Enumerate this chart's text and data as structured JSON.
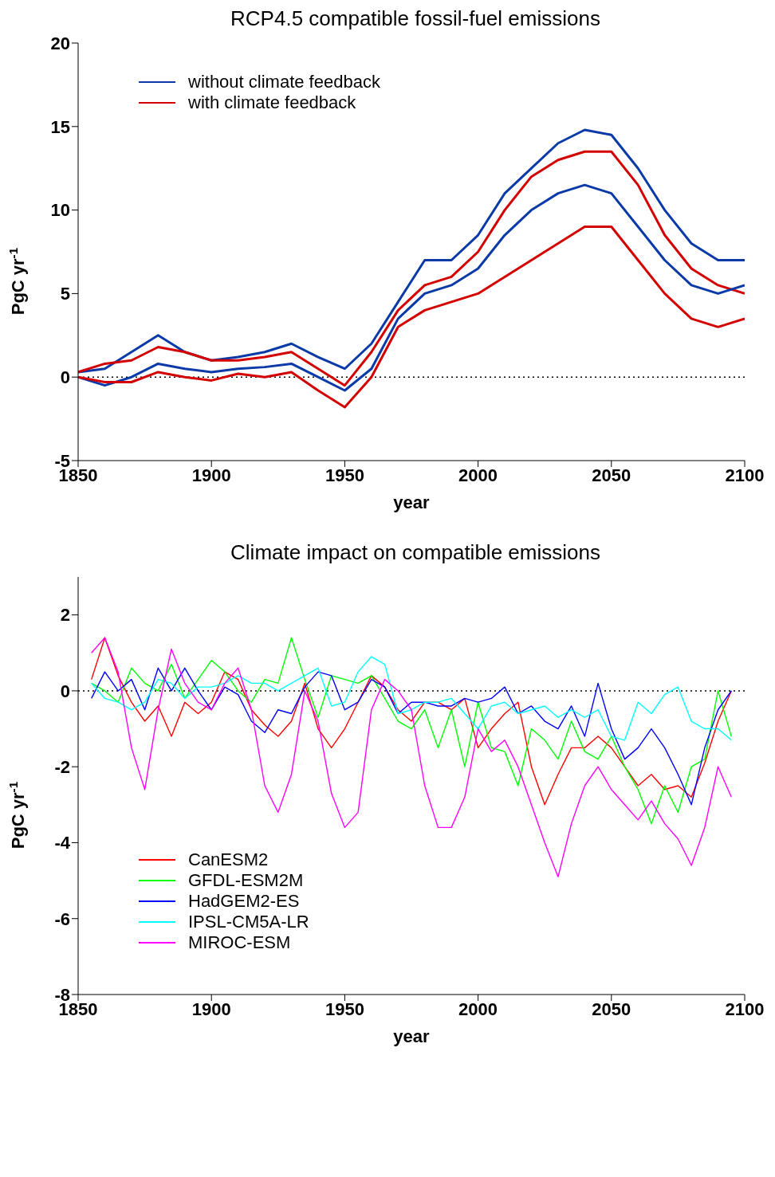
{
  "chart_data": [
    {
      "type": "line",
      "title": "RCP4.5 compatible fossil-fuel emissions",
      "xlabel": "year",
      "ylabel": "PgC yr$^{-1}$",
      "x": [
        1850,
        1860,
        1870,
        1880,
        1890,
        1900,
        1910,
        1920,
        1930,
        1940,
        1950,
        1960,
        1970,
        1980,
        1990,
        2000,
        2010,
        2020,
        2030,
        2040,
        2050,
        2060,
        2070,
        2080,
        2090,
        2100
      ],
      "series": [
        {
          "name": "without climate feedback",
          "color": "#0a3aa8",
          "values": [
            0.3,
            0.5,
            1.5,
            2.5,
            1.5,
            1.0,
            1.2,
            1.5,
            2.0,
            1.2,
            0.5,
            2.0,
            4.5,
            7.0,
            7.0,
            8.5,
            11.0,
            12.5,
            14.0,
            14.8,
            14.5,
            12.5,
            10.0,
            8.0,
            7.0,
            7.0
          ]
        },
        {
          "name": "with climate feedback",
          "color": "#d40000",
          "values": [
            0.3,
            0.8,
            1.0,
            1.8,
            1.5,
            1.0,
            1.0,
            1.2,
            1.5,
            0.5,
            -0.5,
            1.5,
            4.0,
            5.5,
            6.0,
            7.5,
            10.0,
            12.0,
            13.0,
            13.5,
            13.5,
            11.5,
            8.5,
            6.5,
            5.5,
            5.0
          ]
        },
        {
          "color": "#0a3aa8",
          "values": [
            0.0,
            -0.5,
            0.0,
            0.8,
            0.5,
            0.3,
            0.5,
            0.6,
            0.8,
            0.0,
            -0.8,
            0.5,
            3.5,
            5.0,
            5.5,
            6.5,
            8.5,
            10.0,
            11.0,
            11.5,
            11.0,
            9.0,
            7.0,
            5.5,
            5.0,
            5.5
          ]
        },
        {
          "color": "#d40000",
          "values": [
            0.0,
            -0.3,
            -0.3,
            0.3,
            0.0,
            -0.2,
            0.2,
            0.0,
            0.3,
            -0.8,
            -1.8,
            0.0,
            3.0,
            4.0,
            4.5,
            5.0,
            6.0,
            7.0,
            8.0,
            9.0,
            9.0,
            7.0,
            5.0,
            3.5,
            3.0,
            3.5
          ]
        }
      ],
      "xlim": [
        1850,
        2100
      ],
      "xticks": [
        1850,
        1900,
        1950,
        2000,
        2050,
        2100
      ],
      "ylim": [
        -5,
        20
      ],
      "yticks": [
        -5,
        0,
        5,
        10,
        15,
        20
      ],
      "ref_lines": [
        {
          "axis": "y",
          "value": 0,
          "color": "#000000",
          "line_style": "dotted"
        }
      ],
      "legend": "top left",
      "grid": false,
      "marker": "none",
      "line_style": "solid"
    },
    {
      "type": "line",
      "title": "Climate impact on compatible emissions",
      "xlabel": "year",
      "ylabel": "PgC yr$^{-1}$",
      "x": [
        1855,
        1860,
        1865,
        1870,
        1875,
        1880,
        1885,
        1890,
        1895,
        1900,
        1905,
        1910,
        1915,
        1920,
        1925,
        1930,
        1935,
        1940,
        1945,
        1950,
        1955,
        1960,
        1965,
        1970,
        1975,
        1980,
        1985,
        1990,
        1995,
        2000,
        2005,
        2010,
        2015,
        2020,
        2025,
        2030,
        2035,
        2040,
        2045,
        2050,
        2055,
        2060,
        2065,
        2070,
        2075,
        2080,
        2085,
        2090,
        2095
      ],
      "series": [
        {
          "name": "CanESM2",
          "color": "#ff0000",
          "values": [
            0.3,
            1.4,
            0.4,
            -0.3,
            -0.8,
            -0.4,
            -1.2,
            -0.3,
            -0.6,
            -0.3,
            0.5,
            0.3,
            -0.5,
            -0.9,
            -1.2,
            -0.8,
            0.2,
            -1.0,
            -1.5,
            -1.0,
            -0.3,
            0.4,
            0.1,
            -0.5,
            -0.8,
            -0.3,
            -0.3,
            -0.5,
            -0.2,
            -1.5,
            -1.0,
            -0.6,
            -0.3,
            -2.0,
            -3.0,
            -2.2,
            -1.5,
            -1.5,
            -1.2,
            -1.5,
            -2.0,
            -2.5,
            -2.2,
            -2.6,
            -2.5,
            -2.8,
            -1.9,
            -0.8,
            0.0
          ]
        },
        {
          "name": "GFDL-ESM2M",
          "color": "#00ff00",
          "values": [
            0.2,
            0.0,
            -0.3,
            0.6,
            0.2,
            0.0,
            0.7,
            -0.2,
            0.3,
            0.8,
            0.5,
            0.0,
            -0.3,
            0.3,
            0.2,
            1.4,
            0.3,
            -0.7,
            0.4,
            0.3,
            0.2,
            0.4,
            -0.2,
            -0.8,
            -1.0,
            -0.5,
            -1.5,
            -0.5,
            -2.0,
            -0.3,
            -1.5,
            -1.6,
            -2.5,
            -1.0,
            -1.3,
            -1.8,
            -0.8,
            -1.6,
            -1.8,
            -1.2,
            -2.0,
            -2.6,
            -3.5,
            -2.5,
            -3.2,
            -2.0,
            -1.8,
            0.0,
            -1.2
          ]
        },
        {
          "name": "HadGEM2-ES",
          "color": "#0000ff",
          "values": [
            -0.2,
            0.5,
            0.0,
            0.3,
            -0.5,
            0.6,
            0.0,
            0.6,
            0.0,
            -0.5,
            0.1,
            -0.1,
            -0.8,
            -1.1,
            -0.5,
            -0.6,
            0.1,
            0.5,
            0.4,
            -0.5,
            -0.3,
            0.3,
            0.1,
            -0.6,
            -0.3,
            -0.3,
            -0.4,
            -0.4,
            -0.2,
            -0.3,
            -0.2,
            0.1,
            -0.6,
            -0.4,
            -0.8,
            -1.0,
            -0.4,
            -1.2,
            0.2,
            -1.0,
            -1.8,
            -1.5,
            -1.0,
            -1.5,
            -2.2,
            -3.0,
            -1.5,
            -0.5,
            0.0
          ]
        },
        {
          "name": "IPSL-CM5A-LR",
          "color": "#00ffff",
          "values": [
            0.2,
            -0.2,
            -0.3,
            -0.5,
            -0.3,
            0.3,
            0.2,
            -0.2,
            0.1,
            0.1,
            0.2,
            0.4,
            0.2,
            0.2,
            0.0,
            0.2,
            0.4,
            0.6,
            -0.4,
            -0.3,
            0.5,
            0.9,
            0.7,
            -0.6,
            -0.5,
            -0.3,
            -0.3,
            -0.2,
            -0.6,
            -1.0,
            -0.4,
            -0.3,
            -0.6,
            -0.5,
            -0.4,
            -0.7,
            -0.5,
            -0.7,
            -0.5,
            -1.2,
            -1.3,
            -0.3,
            -0.6,
            -0.1,
            0.1,
            -0.8,
            -1.0,
            -1.0,
            -1.3
          ]
        },
        {
          "name": "MIROC-ESM",
          "color": "#ff00ff",
          "values": [
            1.0,
            1.4,
            0.5,
            -1.5,
            -2.6,
            -0.5,
            1.1,
            0.2,
            -0.3,
            -0.5,
            0.2,
            0.6,
            -0.5,
            -2.5,
            -3.2,
            -2.2,
            0.0,
            -0.8,
            -2.7,
            -3.6,
            -3.2,
            -0.5,
            0.3,
            0.0,
            -0.5,
            -2.5,
            -3.6,
            -3.6,
            -2.8,
            -1.0,
            -1.6,
            -1.3,
            -2.0,
            -3.0,
            -4.0,
            -4.9,
            -3.5,
            -2.5,
            -2.0,
            -2.6,
            -3.0,
            -3.4,
            -2.9,
            -3.5,
            -3.9,
            -4.6,
            -3.6,
            -2.0,
            -2.8
          ]
        }
      ],
      "xlim": [
        1850,
        2100
      ],
      "xticks": [
        1850,
        1900,
        1950,
        2000,
        2050,
        2100
      ],
      "ylim": [
        -8,
        3
      ],
      "yticks": [
        -8,
        -6,
        -4,
        -2,
        0,
        2
      ],
      "ref_lines": [
        {
          "axis": "y",
          "value": 0,
          "color": "#000000",
          "line_style": "dotted"
        }
      ],
      "legend": "bottom left",
      "grid": false,
      "marker": "none",
      "line_style": "solid"
    }
  ]
}
